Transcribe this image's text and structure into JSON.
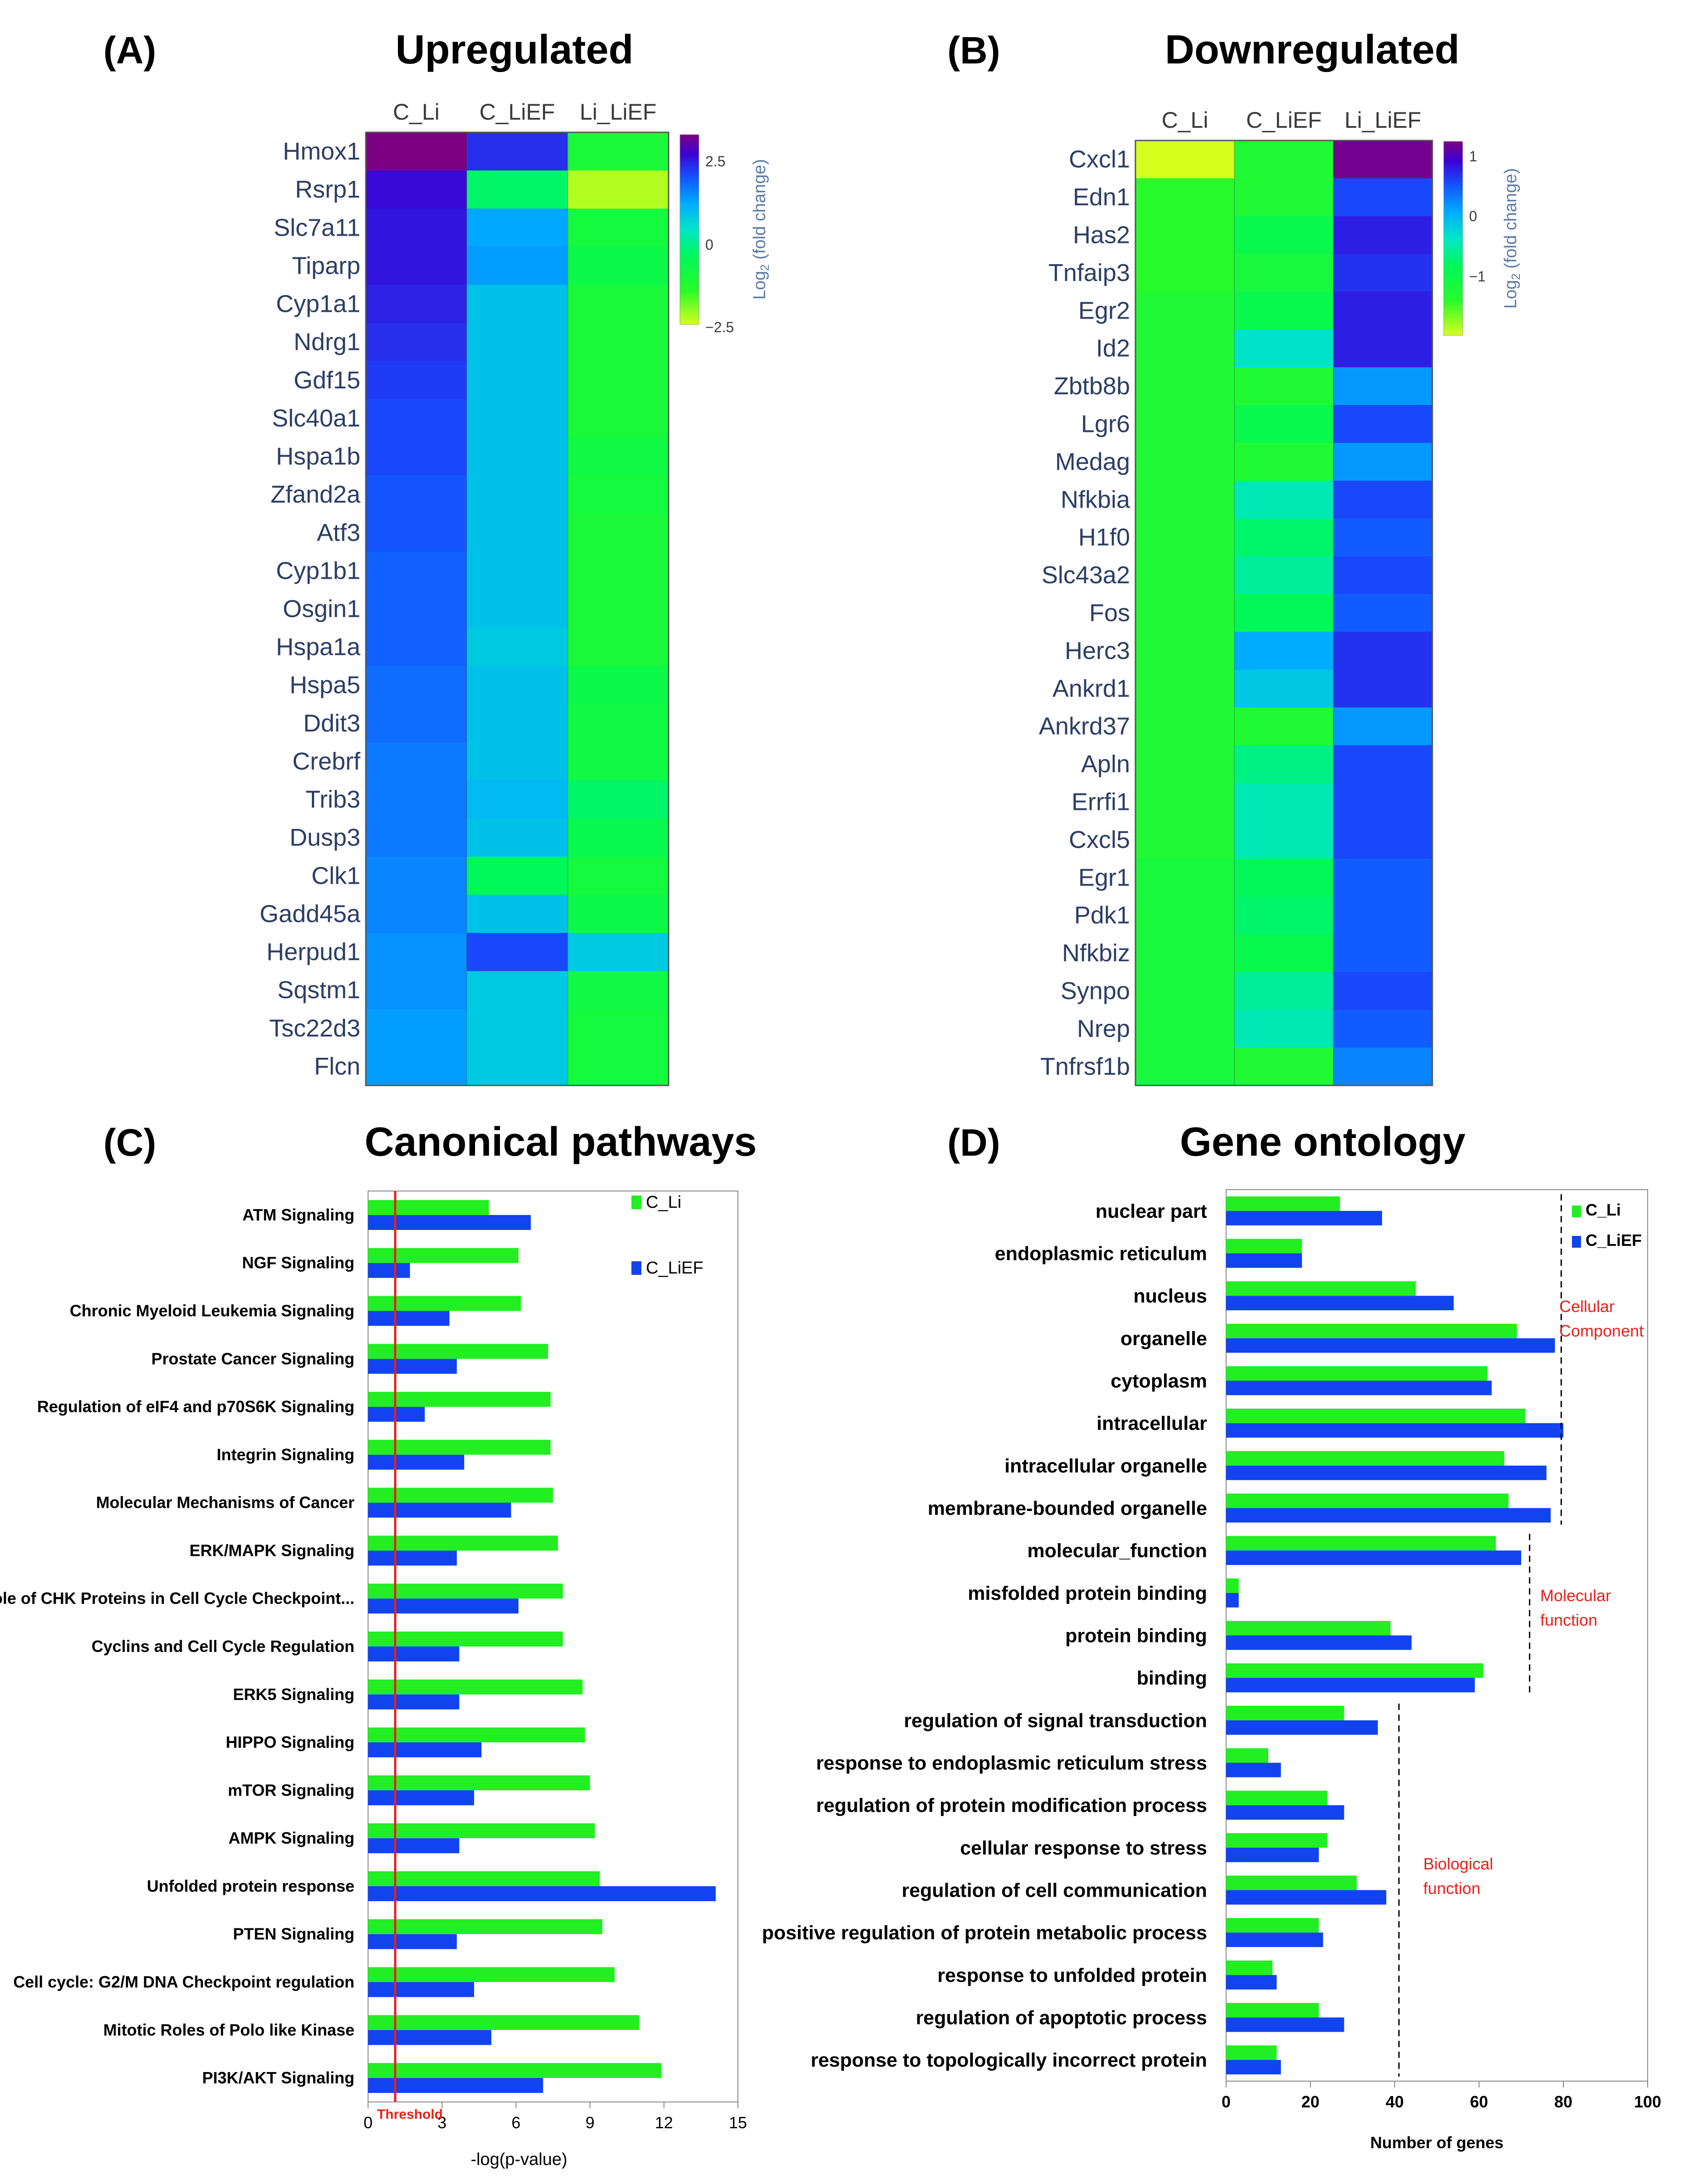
{
  "panels": {
    "a": {
      "letter": "(A)",
      "title": "Upregulated"
    },
    "b": {
      "letter": "(B)",
      "title": "Downregulated"
    },
    "c": {
      "letter": "(C)",
      "title": "Canonical pathways"
    },
    "d": {
      "letter": "(D)",
      "title": "Gene ontology"
    }
  },
  "chart_data": [
    {
      "type": "heatmap",
      "id": "upregulated",
      "title": "Upregulated",
      "columns": [
        "C_Li",
        "C_LiEF",
        "Li_LiEF"
      ],
      "rows": [
        "Hmox1",
        "Rsrp1",
        "Slc7a11",
        "Tiparp",
        "Cyp1a1",
        "Ndrg1",
        "Gdf15",
        "Slc40a1",
        "Hspa1b",
        "Zfand2a",
        "Atf3",
        "Cyp1b1",
        "Osgin1",
        "Hspa1a",
        "Hspa5",
        "Ddit3",
        "Crebrf",
        "Trib3",
        "Dusp3",
        "Clk1",
        "Gadd45a",
        "Herpud1",
        "Sqstm1",
        "Tsc22d3",
        "Flcn"
      ],
      "values": [
        [
          2.9,
          1.9,
          -1.2
        ],
        [
          2.2,
          -0.5,
          -2.3
        ],
        [
          2.1,
          0.9,
          -1.1
        ],
        [
          2.1,
          1.0,
          -0.9
        ],
        [
          2.0,
          0.6,
          -1.2
        ],
        [
          1.9,
          0.6,
          -1.2
        ],
        [
          1.8,
          0.6,
          -1.2
        ],
        [
          1.7,
          0.6,
          -1.2
        ],
        [
          1.7,
          0.6,
          -1.0
        ],
        [
          1.6,
          0.6,
          -1.1
        ],
        [
          1.6,
          0.6,
          -1.2
        ],
        [
          1.5,
          0.6,
          -1.2
        ],
        [
          1.5,
          0.6,
          -1.2
        ],
        [
          1.5,
          0.5,
          -1.2
        ],
        [
          1.4,
          0.6,
          -0.9
        ],
        [
          1.4,
          0.6,
          -1.0
        ],
        [
          1.3,
          0.6,
          -1.0
        ],
        [
          1.3,
          0.7,
          -0.5
        ],
        [
          1.3,
          0.6,
          -0.8
        ],
        [
          1.2,
          -0.6,
          -1.1
        ],
        [
          1.2,
          0.6,
          -0.9
        ],
        [
          1.1,
          1.7,
          0.5
        ],
        [
          1.1,
          0.5,
          -1.0
        ],
        [
          1.0,
          0.5,
          -1.1
        ],
        [
          1.0,
          0.5,
          -1.1
        ]
      ],
      "colorbar": {
        "ticks": [
          "2.5",
          "0",
          "−2.5"
        ],
        "min": -2.5,
        "max": 2.8,
        "label_base": "Log",
        "label_sub": "2",
        "label_rest": " (fold change)"
      }
    },
    {
      "type": "heatmap",
      "id": "downregulated",
      "title": "Downregulated",
      "columns": [
        "C_Li",
        "C_LiEF",
        "Li_LiEF"
      ],
      "rows": [
        "Cxcl1",
        "Edn1",
        "Has2",
        "Tnfaip3",
        "Egr2",
        "Id2",
        "Zbtb8b",
        "Lgr6",
        "Medag",
        "Nfkbia",
        "H1f0",
        "Slc43a2",
        "Fos",
        "Herc3",
        "Ankrd1",
        "Ankrd37",
        "Apln",
        "Errfi1",
        "Cxcl5",
        "Egr1",
        "Pdk1",
        "Nfkbiz",
        "Synpo",
        "Nrep",
        "Tnfrsf1b"
      ],
      "values": [
        [
          -1.9,
          -1.2,
          1.2
        ],
        [
          -1.3,
          -1.2,
          0.6
        ],
        [
          -1.3,
          -0.9,
          0.8
        ],
        [
          -1.3,
          -1.1,
          0.7
        ],
        [
          -1.2,
          -0.9,
          0.8
        ],
        [
          -1.2,
          -0.3,
          0.8
        ],
        [
          -1.2,
          -1.2,
          0.2
        ],
        [
          -1.2,
          -0.9,
          0.6
        ],
        [
          -1.2,
          -1.2,
          0.2
        ],
        [
          -1.2,
          -0.4,
          0.6
        ],
        [
          -1.2,
          -0.7,
          0.5
        ],
        [
          -1.2,
          -0.5,
          0.6
        ],
        [
          -1.2,
          -0.8,
          0.5
        ],
        [
          -1.2,
          0.1,
          0.7
        ],
        [
          -1.2,
          -0.1,
          0.7
        ],
        [
          -1.2,
          -1.2,
          0.2
        ],
        [
          -1.2,
          -0.6,
          0.6
        ],
        [
          -1.2,
          -0.4,
          0.6
        ],
        [
          -1.2,
          -0.4,
          0.6
        ],
        [
          -1.1,
          -0.8,
          0.5
        ],
        [
          -1.1,
          -0.7,
          0.5
        ],
        [
          -1.1,
          -0.9,
          0.5
        ],
        [
          -1.1,
          -0.5,
          0.6
        ],
        [
          -1.1,
          -0.4,
          0.5
        ],
        [
          -1.1,
          -1.2,
          0.3
        ]
      ],
      "colorbar": {
        "ticks": [
          "1",
          "0",
          "−1"
        ],
        "min": -1.9,
        "max": 1.25,
        "label_base": "Log",
        "label_sub": "2",
        "label_rest": " (fold change)"
      }
    },
    {
      "type": "bar",
      "id": "canonical",
      "title": "Canonical pathways",
      "orientation": "horizontal",
      "categories": [
        "ATM Signaling",
        "NGF Signaling",
        "Chronic Myeloid Leukemia Signaling",
        "Prostate Cancer Signaling",
        "Regulation of eIF4 and p70S6K Signaling",
        "Integrin Signaling",
        "Molecular Mechanisms of Cancer",
        "ERK/MAPK Signaling",
        "Role of CHK Proteins in Cell Cycle Checkpoint...",
        "Cyclins and Cell Cycle Regulation",
        "ERK5 Signaling",
        "HIPPO Signaling",
        "mTOR Signaling",
        "AMPK Signaling",
        "Unfolded protein response",
        "PTEN Signaling",
        "Cell cycle: G2/M DNA Checkpoint regulation",
        "Mitotic Roles of Polo like Kinase",
        "PI3K/AKT Signaling"
      ],
      "series": [
        {
          "name": "C_Li",
          "color": "#22ee22",
          "values": [
            4.9,
            6.1,
            6.2,
            7.3,
            7.4,
            7.4,
            7.5,
            7.7,
            7.9,
            7.9,
            8.7,
            8.8,
            9.0,
            9.2,
            9.4,
            9.5,
            10.0,
            11.0,
            11.9
          ]
        },
        {
          "name": "C_LiEF",
          "color": "#1144ee",
          "values": [
            6.6,
            1.7,
            3.3,
            3.6,
            2.3,
            3.9,
            5.8,
            3.6,
            6.1,
            3.7,
            3.7,
            4.6,
            4.3,
            3.7,
            14.1,
            3.6,
            4.3,
            5.0,
            7.1
          ]
        }
      ],
      "xlabel": "-log(p-value)",
      "xticks": [
        0,
        3,
        6,
        9,
        12,
        15
      ],
      "xlim": [
        0,
        15
      ],
      "threshold": {
        "value": 1.1,
        "label": "Threshold",
        "color": "#e8201a"
      },
      "legend": "top-right"
    },
    {
      "type": "bar",
      "id": "gene_ontology",
      "title": "Gene ontology",
      "orientation": "horizontal",
      "categories": [
        "nuclear part",
        "endoplasmic reticulum",
        "nucleus",
        "organelle",
        "cytoplasm",
        "intracellular",
        "intracellular organelle",
        "membrane-bounded organelle",
        "molecular_function",
        "misfolded protein binding",
        "protein binding",
        "binding",
        "regulation of signal transduction",
        "response to endoplasmic reticulum stress",
        "regulation of protein modification process",
        "cellular response to stress",
        "regulation of cell communication",
        "positive regulation of protein metabolic process",
        "response to unfolded protein",
        "regulation of apoptotic process",
        "response to topologically incorrect protein"
      ],
      "series": [
        {
          "name": "C_Li",
          "color": "#22ee22",
          "values": [
            27,
            18,
            45,
            69,
            62,
            71,
            66,
            67,
            64,
            3,
            39,
            61,
            28,
            10,
            24,
            24,
            31,
            22,
            11,
            22,
            12
          ]
        },
        {
          "name": "C_LiEF",
          "color": "#1144ee",
          "values": [
            37,
            18,
            54,
            78,
            63,
            80,
            76,
            77,
            70,
            3,
            44,
            59,
            36,
            13,
            28,
            22,
            38,
            23,
            12,
            28,
            13
          ]
        }
      ],
      "xlabel": "Number of genes",
      "xticks": [
        0,
        20,
        40,
        60,
        80,
        100
      ],
      "xlim": [
        0,
        100
      ],
      "groups": [
        {
          "label_lines": [
            "Cellular",
            "Component"
          ],
          "from": 0,
          "to": 7,
          "line_value": 79.5
        },
        {
          "label_lines": [
            "Molecular",
            "function"
          ],
          "from": 8,
          "to": 11,
          "line_value": 72
        },
        {
          "label_lines": [
            "Biological",
            "function"
          ],
          "from": 12,
          "to": 20,
          "line_value": 41
        }
      ],
      "legend": "top-right"
    }
  ]
}
